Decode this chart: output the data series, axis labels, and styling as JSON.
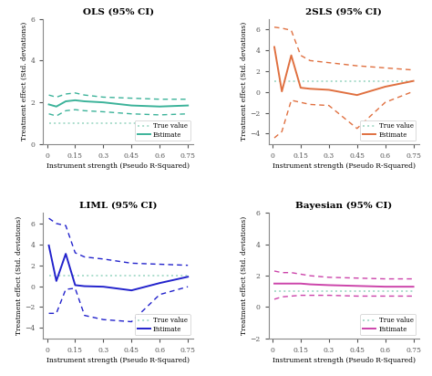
{
  "x": [
    0.01,
    0.05,
    0.1,
    0.15,
    0.2,
    0.3,
    0.45,
    0.6,
    0.75
  ],
  "ols_true": [
    1.0,
    1.0,
    1.0,
    1.0,
    1.0,
    1.0,
    1.0,
    1.0,
    1.0
  ],
  "ols_est": [
    1.9,
    1.8,
    2.05,
    2.1,
    2.05,
    2.0,
    1.85,
    1.8,
    1.85
  ],
  "ols_ci_upper": [
    2.35,
    2.25,
    2.4,
    2.45,
    2.35,
    2.25,
    2.2,
    2.15,
    2.15
  ],
  "ols_ci_lower": [
    1.45,
    1.35,
    1.6,
    1.65,
    1.6,
    1.55,
    1.45,
    1.4,
    1.45
  ],
  "tsls_true": [
    1.0,
    1.0,
    1.0,
    1.0,
    1.0,
    1.0,
    1.0,
    1.0,
    1.0
  ],
  "tsls_est": [
    4.3,
    0.05,
    3.5,
    0.4,
    0.3,
    0.2,
    -0.3,
    0.5,
    1.05
  ],
  "tsls_ci_upper": [
    6.2,
    6.1,
    5.9,
    3.5,
    3.0,
    2.8,
    2.5,
    2.3,
    2.1
  ],
  "tsls_ci_lower": [
    -4.4,
    -3.8,
    -0.8,
    -1.0,
    -1.2,
    -1.3,
    -3.5,
    -1.0,
    0.05
  ],
  "liml_true": [
    1.0,
    1.0,
    1.0,
    1.0,
    1.0,
    1.0,
    1.0,
    1.0,
    1.0
  ],
  "liml_est": [
    3.9,
    0.5,
    3.1,
    0.1,
    0.0,
    -0.05,
    -0.4,
    0.3,
    0.9
  ],
  "liml_ci_upper": [
    6.5,
    6.0,
    5.8,
    3.2,
    2.8,
    2.6,
    2.2,
    2.1,
    2.0
  ],
  "liml_ci_lower": [
    -2.6,
    -2.6,
    -0.3,
    -0.2,
    -2.8,
    -3.2,
    -3.4,
    -0.8,
    -0.05
  ],
  "bayes_true": [
    1.0,
    1.0,
    1.0,
    1.0,
    1.0,
    1.0,
    1.0,
    1.0,
    1.0
  ],
  "bayes_est": [
    1.5,
    1.5,
    1.5,
    1.5,
    1.45,
    1.4,
    1.35,
    1.3,
    1.3
  ],
  "bayes_ci_upper": [
    2.3,
    2.2,
    2.2,
    2.1,
    2.0,
    1.9,
    1.85,
    1.8,
    1.8
  ],
  "bayes_ci_lower": [
    0.5,
    0.65,
    0.7,
    0.75,
    0.75,
    0.75,
    0.7,
    0.7,
    0.7
  ],
  "ols_color": "#3cb39a",
  "tsls_color": "#e07040",
  "liml_color": "#2222cc",
  "bayes_color": "#cc44aa",
  "true_color_ols": "#aaddcc",
  "true_color_tsls": "#aaddcc",
  "true_color_liml": "#aaddcc",
  "true_color_bayes": "#aaddcc",
  "titles": [
    "OLS (95% CI)",
    "2SLS (95% CI)",
    "LIML (95% CI)",
    "Bayesian (95% CI)"
  ],
  "xlabel": "Instrument strength (Pseudo R-Squared)",
  "ylabel": "Treatment effect (Std. deviations)",
  "xticks": [
    0,
    0.15,
    0.3,
    0.45,
    0.6,
    0.75
  ],
  "ols_ylim": [
    0,
    6
  ],
  "ols_yticks": [
    0,
    2,
    4,
    6
  ],
  "tsls_ylim": [
    -5,
    7
  ],
  "tsls_yticks": [
    -4,
    -2,
    0,
    2,
    4,
    6
  ],
  "liml_ylim": [
    -5,
    7
  ],
  "liml_yticks": [
    -4,
    -2,
    0,
    2,
    4,
    6
  ],
  "bayes_ylim": [
    -2,
    6
  ],
  "bayes_yticks": [
    -2,
    0,
    2,
    4,
    6
  ]
}
